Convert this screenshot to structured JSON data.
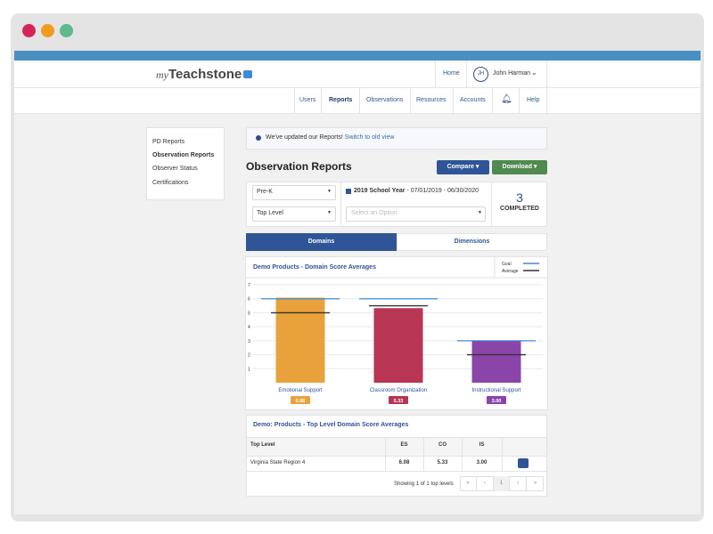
{
  "header": {
    "logo": {
      "prefix": "my",
      "name": "Teachstone"
    },
    "top_links": [
      "Home"
    ],
    "user": {
      "initials": "JH",
      "name": "John Harman"
    },
    "nav": [
      "Users",
      "Reports",
      "Observations",
      "Resources",
      "Accounts",
      "Help"
    ]
  },
  "sidebar": {
    "items": [
      "PD Reports",
      "Observation Reports",
      "Observer Status",
      "Certifications"
    ]
  },
  "notice": {
    "text": "We've updated our Reports!",
    "link": "Switch to old view"
  },
  "page": {
    "title": "Observation Reports",
    "buttons": [
      "Compare",
      "Download"
    ]
  },
  "filters": {
    "level": "Pre-K",
    "group": "Top Level",
    "year": "2019 School Year",
    "range": "- 07/01/2019 - 06/30/2020",
    "placeholder": "Select an Option",
    "completed_count": "3",
    "completed_label": "COMPLETED"
  },
  "tabs": [
    "Domains",
    "Dimensions"
  ],
  "chart_data": {
    "type": "bar",
    "title": "Demo Products - Domain Score Averages",
    "categories": [
      "Emotional Support",
      "Classroom Organization",
      "Instructional Support"
    ],
    "values": [
      6.08,
      5.33,
      3
    ],
    "value_labels": [
      "6.08",
      "5.33",
      "3.00"
    ],
    "colors": [
      "#e9a23b",
      "#b83553",
      "#8b44a8"
    ],
    "series": [
      {
        "name": "Goal",
        "color": "#3d8ad6",
        "values": [
          6,
          6,
          3
        ]
      },
      {
        "name": "Average",
        "color": "#333333",
        "values": [
          5,
          5.5,
          2
        ]
      }
    ],
    "ylim": [
      0,
      7
    ],
    "yticks": [
      1,
      2,
      3,
      4,
      5,
      6,
      7
    ],
    "grid": true
  },
  "table": {
    "title": "Demo: Products - Top Level Domain Score Averages",
    "columns": [
      "Top Level",
      "ES",
      "CO",
      "IS"
    ],
    "rows": [
      [
        "Virginia State Region 4",
        "6.08",
        "5.33",
        "3.00"
      ]
    ],
    "footer": "Showing 1 of 1 top levels",
    "pagination": [
      "«",
      "‹",
      "1",
      "›",
      "»"
    ]
  }
}
